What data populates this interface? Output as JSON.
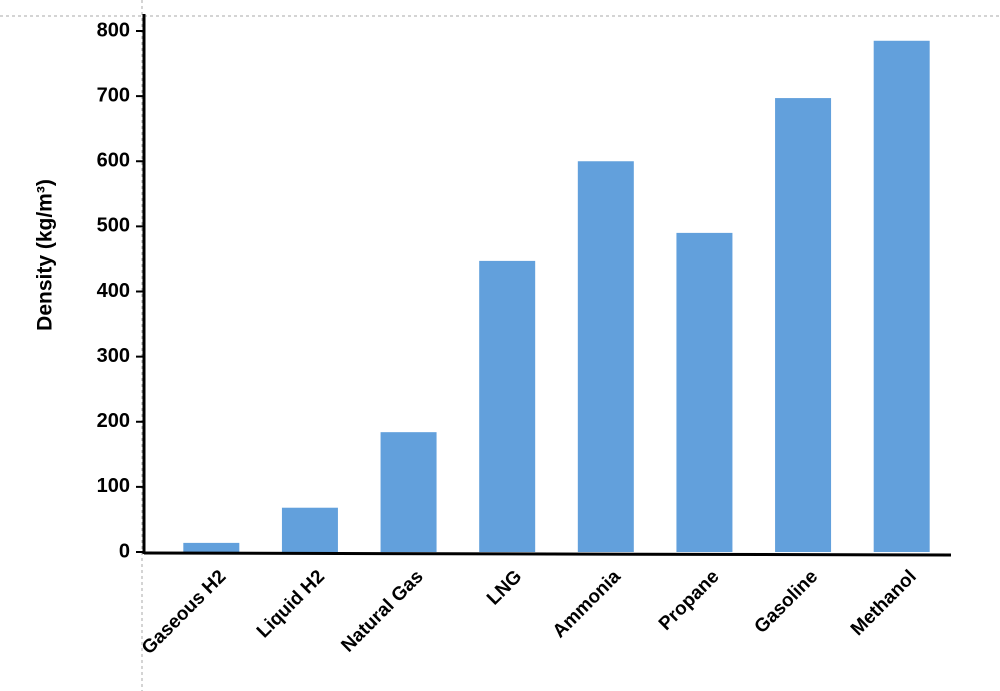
{
  "chart_data": {
    "type": "bar",
    "y_label": "Density (kg/m³)",
    "categories": [
      "Gaseous H2",
      "Liquid H2",
      "Natural Gas",
      "LNG",
      "Ammonia",
      "Propane",
      "Gasoline",
      "Methanol"
    ],
    "values": [
      14,
      68,
      184,
      447,
      600,
      490,
      697,
      785
    ],
    "color": "#62a0dc",
    "ylim": [
      0,
      800
    ],
    "yticks": [
      0,
      100,
      200,
      300,
      400,
      500,
      600,
      700,
      800
    ],
    "grid": false
  }
}
